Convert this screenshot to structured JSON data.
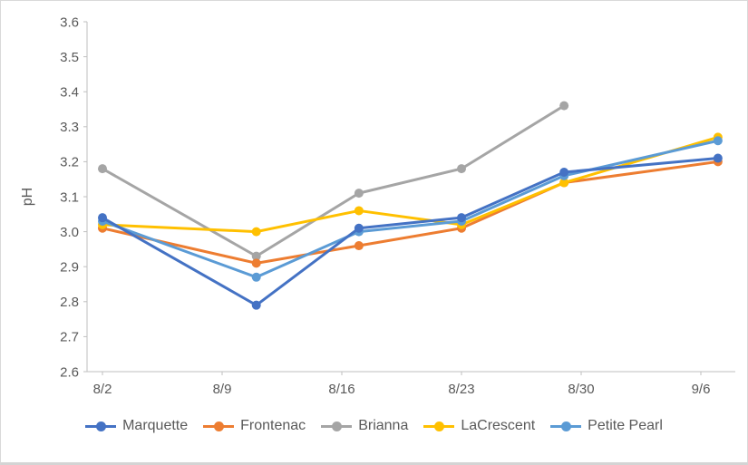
{
  "chart_data": {
    "type": "line",
    "title": "",
    "xlabel": "",
    "ylabel": "pH",
    "ylim": [
      2.6,
      3.6
    ],
    "ytick_step": 0.1,
    "grid": false,
    "legend_position": "bottom",
    "x_tick_labels": [
      "8/2",
      "8/9",
      "8/16",
      "8/23",
      "8/30",
      "9/6"
    ],
    "x_tick_days": [
      0,
      7,
      14,
      21,
      28,
      35
    ],
    "x_dates": [
      "8/2",
      "8/11",
      "8/17",
      "8/23",
      "8/29",
      "9/7"
    ],
    "x_days": [
      0,
      9,
      15,
      21,
      27,
      36
    ],
    "series": [
      {
        "name": "Marquette",
        "color": "#4472C4",
        "values": [
          3.04,
          2.79,
          3.01,
          3.04,
          3.17,
          3.21
        ]
      },
      {
        "name": "Frontenac",
        "color": "#ED7D31",
        "values": [
          3.01,
          2.91,
          2.96,
          3.01,
          3.14,
          3.2
        ]
      },
      {
        "name": "Brianna",
        "color": "#A5A5A5",
        "values": [
          3.18,
          2.93,
          3.11,
          3.18,
          3.36,
          null
        ]
      },
      {
        "name": "LaCrescent",
        "color": "#FFC000",
        "values": [
          3.02,
          3.0,
          3.06,
          3.02,
          3.14,
          3.27
        ]
      },
      {
        "name": "Petite Pearl",
        "color": "#5B9BD5",
        "values": [
          3.03,
          2.87,
          3.0,
          3.03,
          3.16,
          3.26
        ]
      }
    ],
    "axis_color": "#bfbfbf",
    "tick_label_color": "#595959"
  }
}
